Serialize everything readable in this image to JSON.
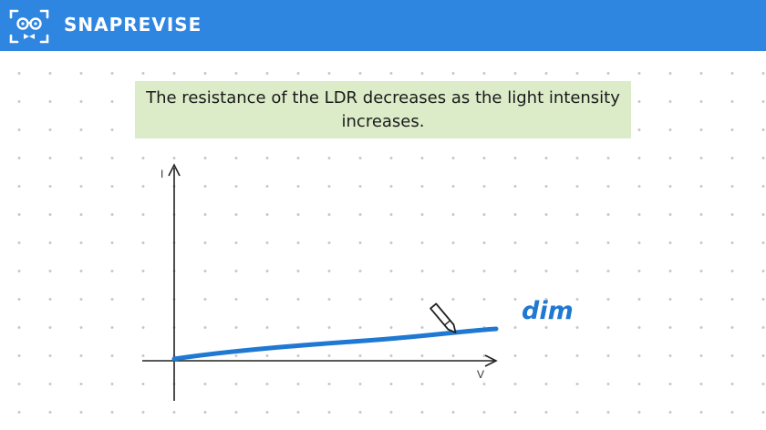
{
  "header": {
    "brand": "SNAPREVISE",
    "logo_icon": "snaprevise-face-logo-icon",
    "background_color": "#2f86e0"
  },
  "caption": {
    "text": "The resistance of the LDR decreases as the light intensity increases.",
    "background_color": "#dcecc8"
  },
  "graph": {
    "y_axis_label": "I",
    "x_axis_label": "V",
    "line_label": "dim",
    "line_color": "#1f78d1",
    "pen_icon": "pen-icon"
  }
}
